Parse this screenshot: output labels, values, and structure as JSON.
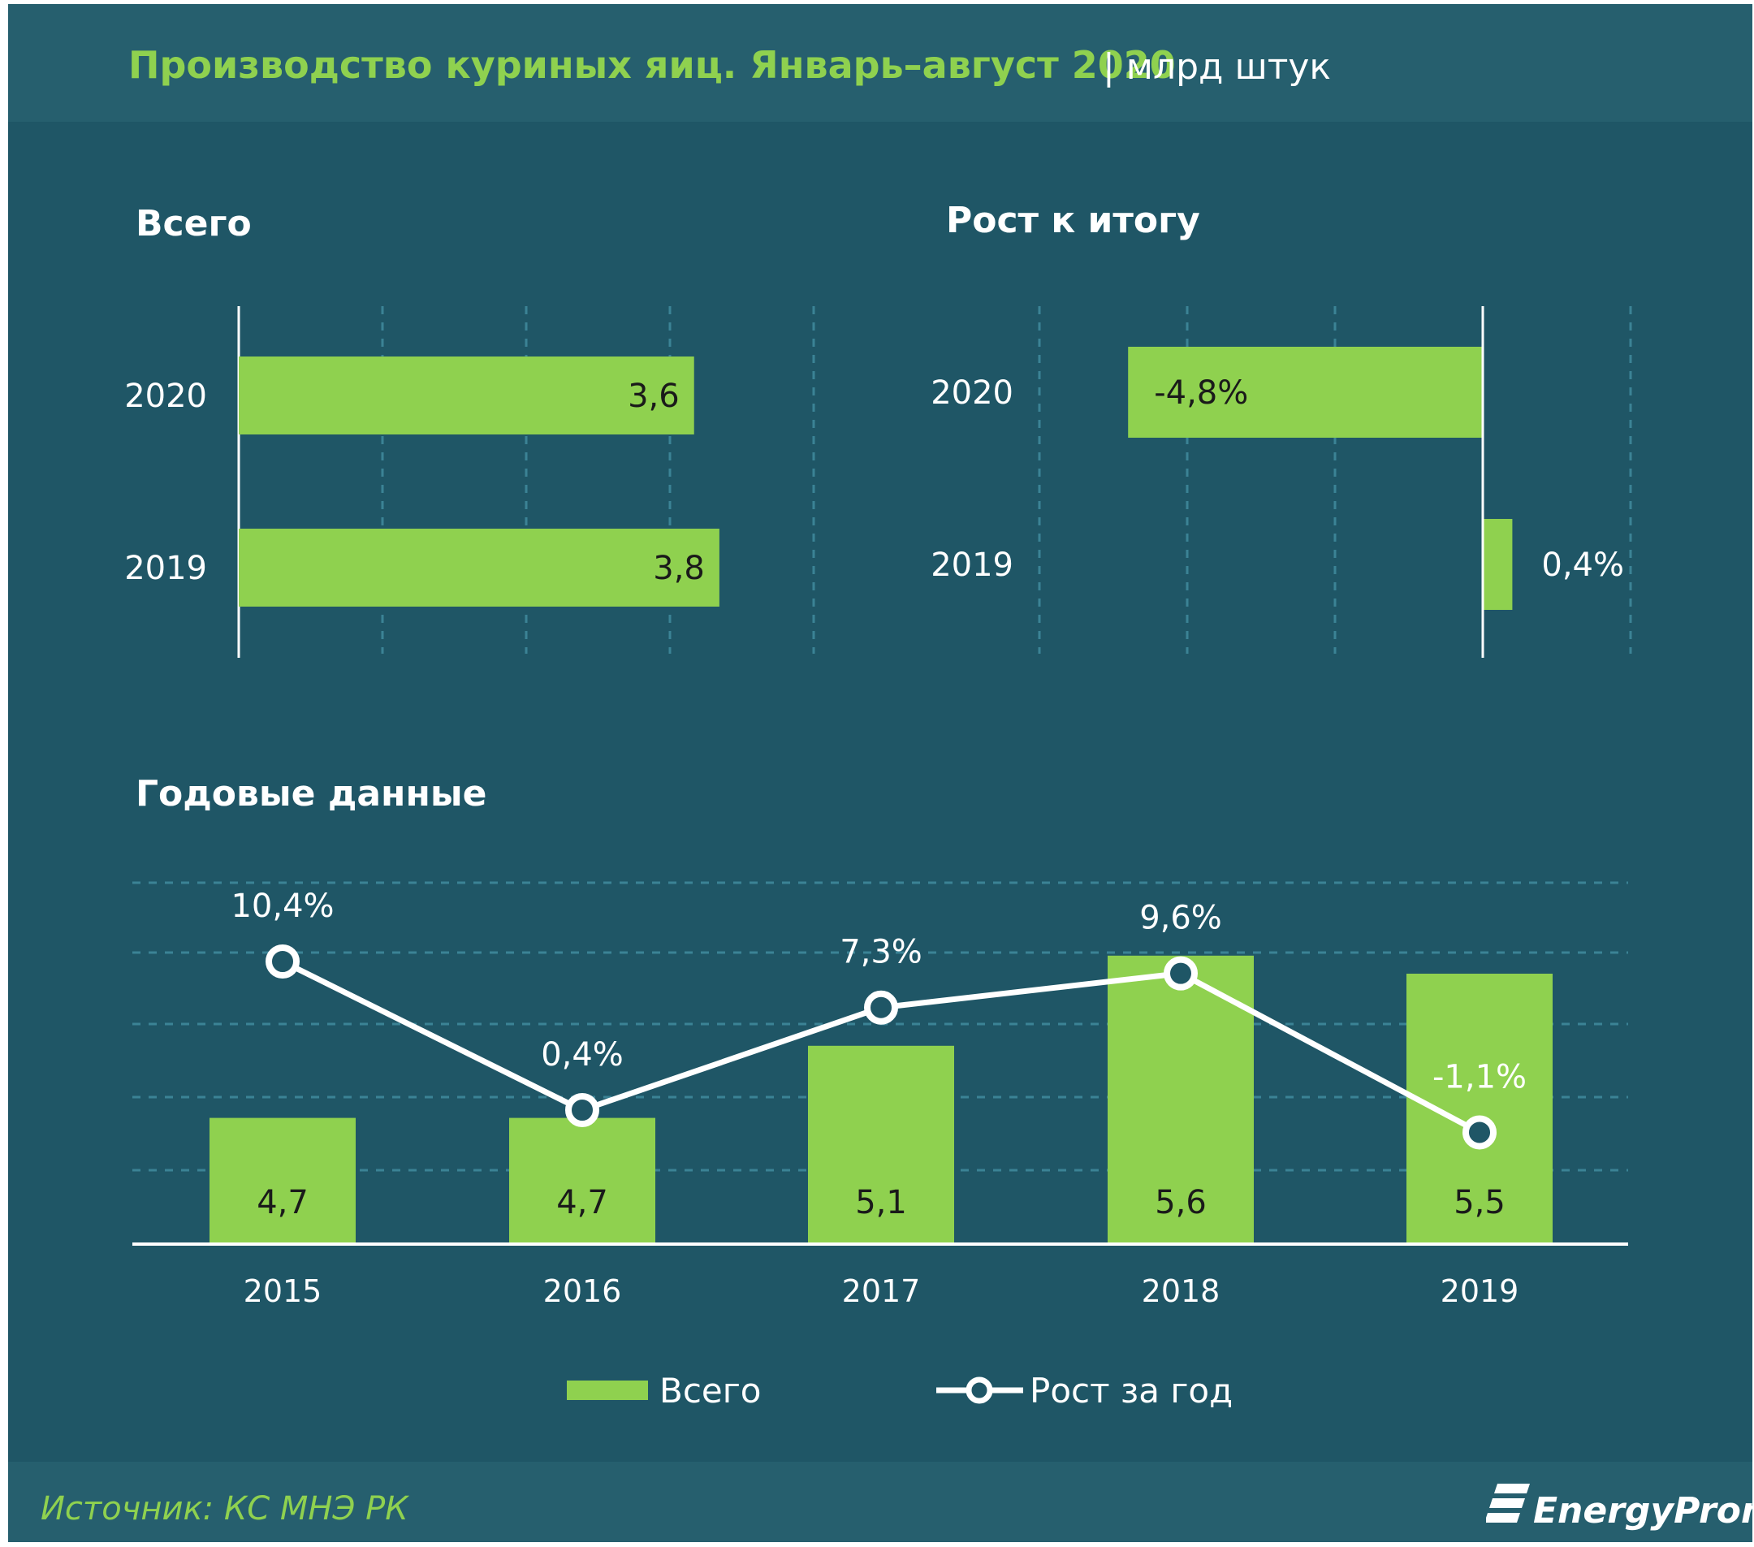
{
  "header": {
    "title": "Производство куриных яиц. Январь–август 2020",
    "unit": "| млрд штук"
  },
  "panels": {
    "total_title": "Всего",
    "growth_title": "Рост к итогу",
    "annual_title": "Годовые данные"
  },
  "chart_data": [
    {
      "type": "bar",
      "orientation": "horizontal",
      "title": "Всего",
      "categories": [
        "2020",
        "2019"
      ],
      "values": [
        3.6,
        3.8
      ],
      "value_labels": [
        "3,6",
        "3,8"
      ],
      "xlim": [
        0,
        6
      ],
      "grid": true
    },
    {
      "type": "bar",
      "orientation": "horizontal",
      "title": "Рост к итогу",
      "categories": [
        "2020",
        "2019"
      ],
      "values": [
        -4.8,
        0.4
      ],
      "value_labels": [
        "-4,8%",
        "0,4%"
      ],
      "xlim": [
        -6,
        2
      ],
      "grid": true
    },
    {
      "type": "bar",
      "title": "Годовые данные",
      "categories": [
        "2015",
        "2016",
        "2017",
        "2018",
        "2019"
      ],
      "series": [
        {
          "name": "Всего",
          "type": "bar",
          "values": [
            4.7,
            4.7,
            5.1,
            5.6,
            5.5
          ],
          "labels": [
            "4,7",
            "4,7",
            "5,1",
            "5,6",
            "5,5"
          ]
        },
        {
          "name": "Рост за год",
          "type": "line",
          "values": [
            10.4,
            0.4,
            7.3,
            9.6,
            -1.1
          ],
          "labels": [
            "10,4%",
            "0,4%",
            "7,3%",
            "9,6%",
            "-1,1%"
          ]
        }
      ],
      "legend": "bottom",
      "grid": true
    }
  ],
  "colors": {
    "background": "#1f5666",
    "band": "#265f6e",
    "bar": "#8fd14f",
    "line": "#ffffff",
    "grid": "#3b8395",
    "title_green": "#8fd14f"
  },
  "footer": {
    "source": "Источник: КС МНЭ РК",
    "logo_text": "EnergyProm"
  }
}
